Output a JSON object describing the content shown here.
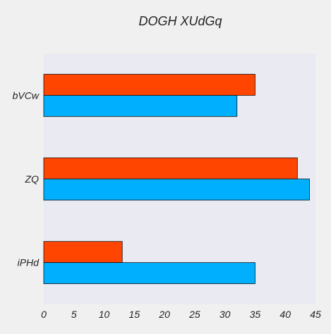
{
  "chart_data": {
    "type": "bar",
    "orientation": "horizontal",
    "title": "DOGH XUdGq",
    "xlabel": "",
    "ylabel": "",
    "categories": [
      "bVCw",
      "ZQ",
      "iPHd"
    ],
    "series": [
      {
        "values": [
          32,
          44,
          35
        ],
        "color": "#00b0ff"
      },
      {
        "values": [
          35,
          42,
          13
        ],
        "color": "#ff4500"
      }
    ],
    "xlim": [
      0,
      45
    ],
    "xticks": [
      0,
      5,
      10,
      15,
      20,
      25,
      30,
      35,
      40,
      45
    ],
    "grid": false,
    "legend": "none",
    "plot_background": "#eaeaf2",
    "page_background": "#f0f0f0"
  }
}
